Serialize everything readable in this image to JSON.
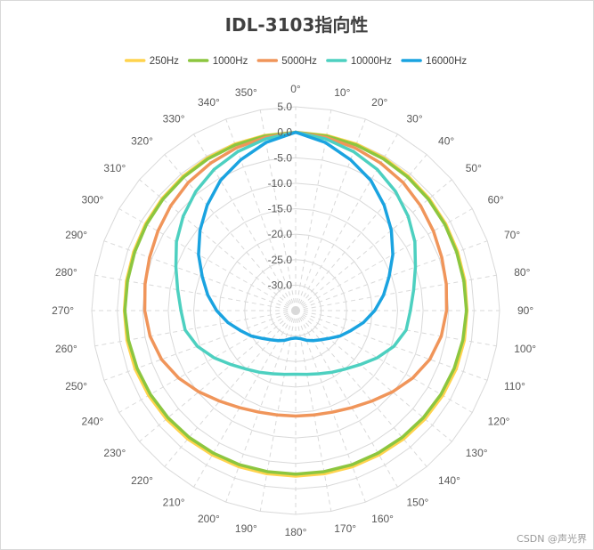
{
  "chart_data": {
    "type": "radar",
    "title": "IDL-3103指向性",
    "angle_labels": [
      "0°",
      "10°",
      "20°",
      "30°",
      "40°",
      "50°",
      "60°",
      "70°",
      "80°",
      "90°",
      "100°",
      "110°",
      "120°",
      "130°",
      "140°",
      "150°",
      "160°",
      "170°",
      "180°",
      "190°",
      "200°",
      "210°",
      "220°",
      "230°",
      "240°",
      "250°",
      "260°",
      "270°",
      "280°",
      "290°",
      "300°",
      "310°",
      "320°",
      "330°",
      "340°",
      "350°"
    ],
    "radial_axis": {
      "min": -35,
      "max": 5,
      "tick_labels": [
        "5.0",
        "0.0",
        "-5.0",
        "-10.0",
        "-15.0",
        "-20.0",
        "-25.0",
        "-30.0"
      ],
      "tick_values": [
        5,
        0,
        -5,
        -10,
        -15,
        -20,
        -25,
        -30
      ]
    },
    "legend_position": "top",
    "grid": true,
    "series": [
      {
        "name": "250Hz",
        "color": "#ffd34d",
        "values": [
          0,
          -0.1,
          -0.2,
          -0.4,
          -0.6,
          -0.8,
          -1.0,
          -1.2,
          -1.3,
          -1.4,
          -1.4,
          -1.5,
          -1.7,
          -1.9,
          -2.1,
          -2.3,
          -2.4,
          -2.5,
          -2.5,
          -2.5,
          -2.4,
          -2.3,
          -2.1,
          -1.9,
          -1.7,
          -1.5,
          -1.4,
          -1.4,
          -1.3,
          -1.2,
          -1.0,
          -0.8,
          -0.6,
          -0.4,
          -0.2,
          -0.1
        ]
      },
      {
        "name": "1000Hz",
        "color": "#8cc63f",
        "values": [
          0,
          -0.2,
          -0.4,
          -0.6,
          -0.8,
          -1.0,
          -1.2,
          -1.4,
          -1.5,
          -1.5,
          -1.7,
          -1.9,
          -2.1,
          -2.3,
          -2.5,
          -2.7,
          -2.8,
          -2.9,
          -2.9,
          -2.9,
          -2.8,
          -2.7,
          -2.5,
          -2.3,
          -2.1,
          -1.9,
          -1.7,
          -1.5,
          -1.5,
          -1.4,
          -1.2,
          -1.0,
          -0.8,
          -0.6,
          -0.4,
          -0.2
        ]
      },
      {
        "name": "5000Hz",
        "color": "#f0955a",
        "values": [
          0,
          -0.5,
          -1.0,
          -1.6,
          -2.2,
          -3.0,
          -3.8,
          -4.5,
          -5.0,
          -5.4,
          -6.0,
          -7.0,
          -8.5,
          -10.2,
          -11.8,
          -13.0,
          -13.8,
          -14.2,
          -14.3,
          -14.2,
          -13.8,
          -13.0,
          -11.8,
          -10.2,
          -8.5,
          -7.0,
          -6.0,
          -5.4,
          -5.0,
          -4.5,
          -3.8,
          -3.0,
          -2.2,
          -1.6,
          -1.0,
          -0.5
        ]
      },
      {
        "name": "10000Hz",
        "color": "#4dd0c0",
        "values": [
          0,
          -0.8,
          -1.8,
          -3.0,
          -4.5,
          -6.2,
          -8.0,
          -10.0,
          -11.5,
          -12.5,
          -13.0,
          -14.5,
          -16.5,
          -18.5,
          -20.0,
          -21.0,
          -21.8,
          -22.3,
          -22.5,
          -22.3,
          -21.8,
          -21.0,
          -20.0,
          -18.5,
          -16.5,
          -14.5,
          -13.0,
          -12.5,
          -11.5,
          -10.0,
          -8.0,
          -6.2,
          -4.5,
          -3.0,
          -1.8,
          -0.8
        ]
      },
      {
        "name": "16000Hz",
        "color": "#1aa3e0",
        "values": [
          0,
          -1.5,
          -3.5,
          -5.5,
          -8.0,
          -10.5,
          -13.0,
          -15.5,
          -17.5,
          -19.5,
          -21.5,
          -23.5,
          -25.0,
          -26.5,
          -27.5,
          -28.2,
          -28.8,
          -29.4,
          -29.6,
          -29.4,
          -28.8,
          -28.2,
          -27.5,
          -26.5,
          -25.0,
          -23.5,
          -21.5,
          -19.5,
          -17.5,
          -15.5,
          -13.0,
          -10.5,
          -8.0,
          -5.5,
          -3.5,
          -1.5
        ]
      }
    ]
  },
  "watermark": "CSDN @声光界"
}
